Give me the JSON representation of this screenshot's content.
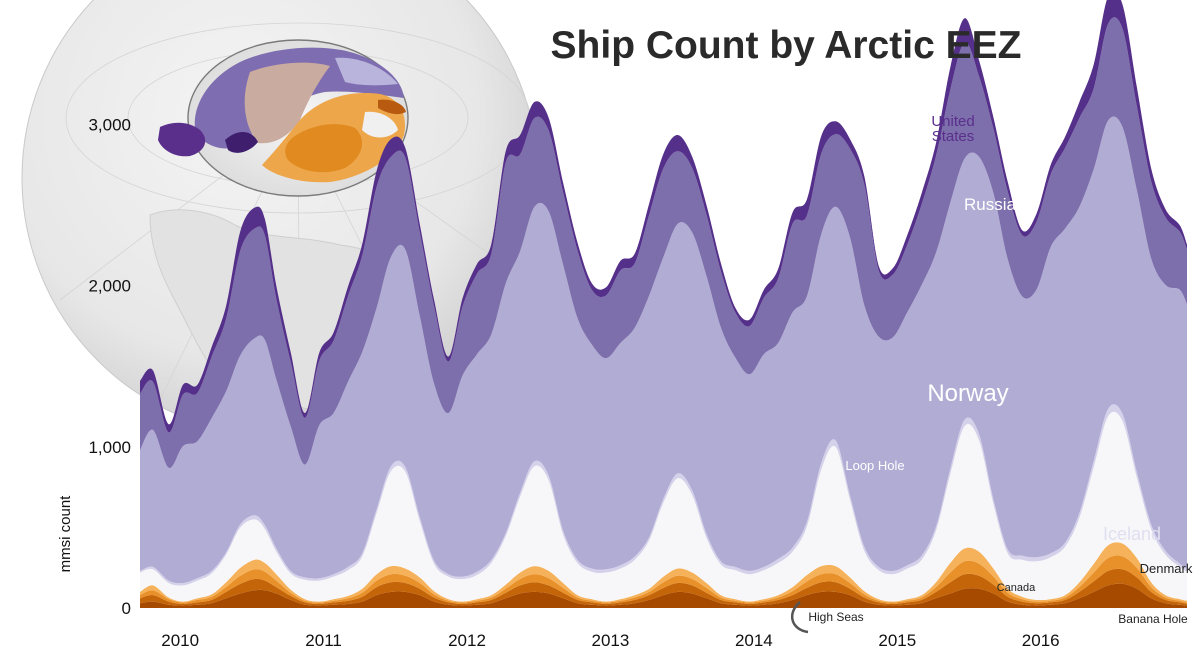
{
  "chart_data": {
    "type": "area",
    "stacked": true,
    "title": "Ship Count by Arctic EEZ",
    "ylabel": "mmsi count",
    "xlabel": "",
    "ylim": [
      0,
      3500
    ],
    "xlim": [
      2009.75,
      2017.05
    ],
    "yticks": [
      0,
      1000,
      2000,
      3000
    ],
    "ytick_labels": [
      "0",
      "1,000",
      "2,000",
      "3,000"
    ],
    "xticks": [
      2010,
      2011,
      2012,
      2013,
      2014,
      2015,
      2016
    ],
    "xtick_labels": [
      "2010",
      "2011",
      "2012",
      "2013",
      "2014",
      "2015",
      "2016"
    ],
    "grid": false,
    "legend": "inline labels",
    "x": [
      2009.75,
      2009.84,
      2009.95,
      2010.05,
      2010.15,
      2010.25,
      2010.35,
      2010.45,
      2010.55,
      2010.62,
      2010.7,
      2010.8,
      2010.9,
      2011.0,
      2011.1,
      2011.2,
      2011.3,
      2011.4,
      2011.5,
      2011.6,
      2011.7,
      2011.8,
      2011.9,
      2012.0,
      2012.1,
      2012.2,
      2012.3,
      2012.4,
      2012.5,
      2012.6,
      2012.7,
      2012.8,
      2012.9,
      2013.0,
      2013.1,
      2013.2,
      2013.3,
      2013.4,
      2013.5,
      2013.6,
      2013.7,
      2013.8,
      2013.9,
      2014.0,
      2014.1,
      2014.2,
      2014.3,
      2014.4,
      2014.5,
      2014.6,
      2014.7,
      2014.8,
      2014.9,
      2015.0,
      2015.1,
      2015.2,
      2015.3,
      2015.4,
      2015.5,
      2015.6,
      2015.7,
      2015.8,
      2015.9,
      2016.0,
      2016.1,
      2016.2,
      2016.3,
      2016.4,
      2016.5,
      2016.6,
      2016.7,
      2016.8,
      2016.9,
      2017.0,
      2017.05
    ],
    "series": [
      {
        "name": "Banana Hole",
        "color": "#a64a00",
        "values": [
          30,
          40,
          20,
          15,
          20,
          30,
          60,
          90,
          110,
          110,
          90,
          50,
          20,
          15,
          20,
          25,
          40,
          80,
          100,
          100,
          80,
          40,
          20,
          15,
          20,
          30,
          60,
          90,
          100,
          90,
          60,
          30,
          20,
          15,
          20,
          30,
          50,
          80,
          100,
          90,
          60,
          30,
          20,
          15,
          20,
          30,
          50,
          80,
          100,
          100,
          80,
          40,
          20,
          15,
          20,
          30,
          60,
          90,
          120,
          120,
          90,
          40,
          20,
          15,
          20,
          30,
          60,
          100,
          140,
          150,
          120,
          60,
          30,
          20,
          15
        ]
      },
      {
        "name": "Denmark",
        "color": "#c4650a",
        "values": [
          30,
          40,
          20,
          10,
          15,
          20,
          40,
          60,
          70,
          60,
          40,
          25,
          15,
          10,
          15,
          20,
          30,
          50,
          60,
          55,
          40,
          25,
          15,
          10,
          15,
          20,
          35,
          50,
          60,
          50,
          35,
          20,
          15,
          10,
          15,
          20,
          30,
          45,
          55,
          50,
          35,
          20,
          15,
          10,
          15,
          20,
          30,
          45,
          60,
          60,
          40,
          25,
          15,
          10,
          15,
          20,
          40,
          70,
          90,
          80,
          55,
          30,
          20,
          15,
          15,
          20,
          40,
          65,
          90,
          90,
          70,
          40,
          20,
          15,
          10
        ]
      },
      {
        "name": "Canada",
        "color": "#e8902a",
        "values": [
          20,
          30,
          15,
          10,
          15,
          20,
          30,
          50,
          60,
          55,
          40,
          20,
          10,
          10,
          10,
          15,
          25,
          40,
          50,
          45,
          35,
          20,
          10,
          10,
          10,
          15,
          25,
          40,
          50,
          45,
          30,
          15,
          10,
          10,
          10,
          15,
          20,
          35,
          45,
          40,
          30,
          15,
          10,
          10,
          10,
          15,
          25,
          40,
          50,
          50,
          35,
          20,
          10,
          10,
          10,
          15,
          30,
          60,
          80,
          75,
          50,
          25,
          15,
          10,
          10,
          15,
          30,
          55,
          80,
          80,
          60,
          30,
          15,
          10,
          10
        ]
      },
      {
        "name": "High Seas",
        "color": "#f6b25a",
        "values": [
          20,
          30,
          10,
          5,
          10,
          15,
          30,
          50,
          60,
          55,
          40,
          20,
          10,
          5,
          10,
          15,
          25,
          40,
          50,
          45,
          35,
          20,
          10,
          5,
          10,
          15,
          25,
          40,
          50,
          45,
          30,
          15,
          10,
          5,
          10,
          15,
          20,
          35,
          45,
          40,
          30,
          15,
          10,
          5,
          10,
          15,
          25,
          40,
          50,
          50,
          35,
          20,
          10,
          5,
          10,
          15,
          30,
          60,
          80,
          75,
          50,
          25,
          15,
          10,
          10,
          15,
          30,
          55,
          80,
          80,
          60,
          30,
          15,
          10,
          10
        ]
      },
      {
        "name": "Loop Hole",
        "color": "#f7f7f9",
        "values": [
          120,
          100,
          90,
          100,
          110,
          130,
          170,
          250,
          250,
          210,
          140,
          100,
          120,
          130,
          140,
          160,
          200,
          380,
          590,
          600,
          350,
          170,
          140,
          140,
          150,
          200,
          300,
          470,
          620,
          560,
          300,
          200,
          170,
          180,
          190,
          220,
          300,
          460,
          560,
          480,
          280,
          190,
          180,
          170,
          180,
          200,
          220,
          300,
          600,
          740,
          480,
          250,
          180,
          170,
          190,
          220,
          320,
          550,
          760,
          690,
          400,
          220,
          230,
          240,
          260,
          300,
          400,
          600,
          800,
          760,
          500,
          330,
          250,
          200,
          180
        ]
      },
      {
        "name": "Iceland",
        "color": "#d5d1ea",
        "values": [
          10,
          15,
          15,
          15,
          15,
          15,
          15,
          20,
          25,
          25,
          20,
          15,
          15,
          15,
          15,
          20,
          20,
          25,
          30,
          30,
          25,
          20,
          15,
          15,
          20,
          20,
          20,
          25,
          30,
          30,
          25,
          20,
          20,
          20,
          20,
          20,
          20,
          25,
          30,
          30,
          25,
          20,
          20,
          20,
          20,
          25,
          25,
          30,
          40,
          40,
          30,
          25,
          20,
          20,
          20,
          25,
          25,
          35,
          40,
          40,
          30,
          25,
          25,
          25,
          25,
          25,
          30,
          40,
          45,
          45,
          35,
          30,
          25,
          20,
          20
        ]
      },
      {
        "name": "Norway",
        "color": "#b1acd4",
        "values": [
          750,
          850,
          700,
          850,
          850,
          950,
          1000,
          1050,
          1100,
          1150,
          1050,
          900,
          700,
          950,
          1000,
          1150,
          1250,
          1250,
          1300,
          1350,
          1250,
          1100,
          1000,
          1250,
          1350,
          1400,
          1550,
          1500,
          1580,
          1640,
          1650,
          1500,
          1390,
          1310,
          1380,
          1420,
          1500,
          1500,
          1550,
          1600,
          1600,
          1450,
          1300,
          1220,
          1320,
          1340,
          1460,
          1400,
          1420,
          1450,
          1600,
          1500,
          1430,
          1450,
          1570,
          1680,
          1700,
          1650,
          1620,
          1720,
          1900,
          1800,
          1610,
          1660,
          1900,
          1950,
          1900,
          1810,
          1790,
          1780,
          1750,
          1650,
          1650,
          1700,
          1640
        ]
      },
      {
        "name": "Russia",
        "color": "#7d6eac",
        "values": [
          350,
          300,
          220,
          320,
          300,
          380,
          450,
          650,
          680,
          650,
          500,
          400,
          290,
          400,
          450,
          530,
          600,
          750,
          620,
          570,
          520,
          480,
          320,
          430,
          500,
          500,
          750,
          600,
          550,
          500,
          450,
          420,
          340,
          390,
          450,
          400,
          500,
          550,
          450,
          400,
          380,
          350,
          280,
          300,
          350,
          400,
          550,
          500,
          500,
          450,
          550,
          750,
          410,
          390,
          420,
          500,
          600,
          700,
          720,
          500,
          400,
          420,
          380,
          420,
          450,
          500,
          550,
          500,
          600,
          610,
          520,
          480,
          420,
          360,
          340
        ]
      },
      {
        "name": "United States",
        "color": "#55308a",
        "values": [
          80,
          70,
          50,
          60,
          50,
          60,
          80,
          120,
          130,
          100,
          80,
          60,
          30,
          50,
          50,
          60,
          70,
          100,
          110,
          60,
          50,
          40,
          30,
          50,
          60,
          60,
          70,
          120,
          100,
          80,
          60,
          50,
          40,
          50,
          60,
          60,
          70,
          90,
          100,
          70,
          60,
          50,
          30,
          40,
          50,
          60,
          70,
          100,
          110,
          80,
          60,
          50,
          30,
          40,
          60,
          70,
          80,
          140,
          150,
          100,
          70,
          60,
          30,
          50,
          60,
          70,
          100,
          150,
          170,
          150,
          120,
          80,
          50,
          40,
          30
        ]
      }
    ],
    "series_labels": [
      "United\nStates",
      "Russia",
      "Norway",
      "Loop Hole",
      "Iceland",
      "Denmark",
      "Canada",
      "High Seas",
      "Banana Hole"
    ],
    "inset": "orthographic globe centered on the Arctic showing EEZ regions"
  }
}
